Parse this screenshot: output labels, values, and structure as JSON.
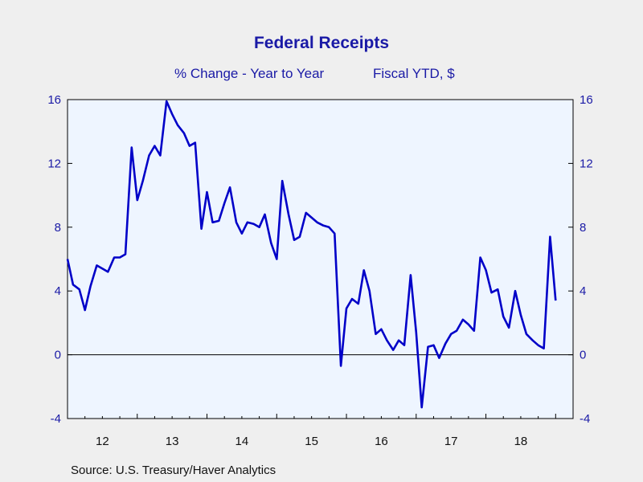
{
  "source": "Source:  U.S. Treasury/Haver Analytics",
  "chart_data": {
    "type": "line",
    "title": "Federal Receipts",
    "subtitle_left": "% Change - Year to Year",
    "subtitle_right": "Fiscal YTD, $",
    "ylim": [
      -4,
      16
    ],
    "yticks": [
      -4,
      0,
      4,
      8,
      12,
      16
    ],
    "xlim": [
      2011.5,
      2018.75
    ],
    "xticks": [
      {
        "label": "12",
        "pos": 2012.0
      },
      {
        "label": "13",
        "pos": 2013.0
      },
      {
        "label": "14",
        "pos": 2014.0
      },
      {
        "label": "15",
        "pos": 2015.0
      },
      {
        "label": "16",
        "pos": 2016.0
      },
      {
        "label": "17",
        "pos": 2017.0
      },
      {
        "label": "18",
        "pos": 2018.0
      }
    ],
    "year_boundaries": [
      2011.5,
      2012.5,
      2013.5,
      2014.5,
      2015.5,
      2016.5,
      2017.5,
      2018.5
    ],
    "zero_line": true,
    "line_color": "#0000c8",
    "plot_bg": "#eef5ff",
    "series": [
      {
        "x": [
          2011.5,
          2011.58,
          2011.67,
          2011.75,
          2011.83,
          2011.92,
          2012.0,
          2012.08,
          2012.17,
          2012.25,
          2012.33,
          2012.42,
          2012.5,
          2012.58,
          2012.67,
          2012.75,
          2012.83,
          2012.92,
          2013.0,
          2013.08,
          2013.17,
          2013.25,
          2013.33,
          2013.42,
          2013.5,
          2013.58,
          2013.67,
          2013.75,
          2013.83,
          2013.92,
          2014.0,
          2014.08,
          2014.17,
          2014.25,
          2014.33,
          2014.42,
          2014.5,
          2014.58,
          2014.67,
          2014.75,
          2014.83,
          2014.92,
          2015.0,
          2015.08,
          2015.17,
          2015.25,
          2015.33,
          2015.42,
          2015.5,
          2015.58,
          2015.67,
          2015.75,
          2015.83,
          2015.92,
          2016.0,
          2016.08,
          2016.17,
          2016.25,
          2016.33,
          2016.42,
          2016.5,
          2016.58,
          2016.67,
          2016.75,
          2016.83,
          2016.92,
          2017.0,
          2017.08,
          2017.17,
          2017.25,
          2017.33,
          2017.42,
          2017.5,
          2017.58,
          2017.67,
          2017.75,
          2017.83,
          2017.92,
          2018.0,
          2018.08,
          2018.17,
          2018.25,
          2018.33,
          2018.42
        ],
        "y": [
          6.0,
          4.4,
          4.1,
          2.8,
          4.3,
          5.6,
          5.4,
          5.2,
          6.1,
          6.1,
          6.3,
          13.0,
          9.7,
          10.9,
          12.5,
          13.1,
          12.5,
          15.9,
          15.1,
          14.4,
          13.9,
          13.1,
          13.3,
          7.9,
          10.2,
          8.3,
          8.4,
          9.5,
          10.5,
          8.3,
          7.6,
          8.3,
          8.2,
          8.0,
          8.8,
          7.0,
          6.0,
          10.9,
          8.8,
          7.2,
          7.4,
          8.9,
          8.6,
          8.3,
          8.1,
          8.0,
          7.6,
          -0.7,
          2.9,
          3.5,
          3.2,
          5.3,
          4.0,
          1.3,
          1.6,
          0.9,
          0.3,
          0.9,
          0.6,
          5.0,
          1.4,
          -3.3,
          0.5,
          0.6,
          -0.2,
          0.7,
          1.3,
          1.5,
          2.2,
          1.9,
          1.5,
          6.1,
          5.3,
          3.9,
          4.1,
          2.4,
          1.7,
          4.0,
          2.5,
          1.3,
          0.9,
          0.6,
          0.4,
          7.4
        ]
      }
    ],
    "last_point": {
      "x": 2018.5,
      "y": 3.4
    }
  }
}
